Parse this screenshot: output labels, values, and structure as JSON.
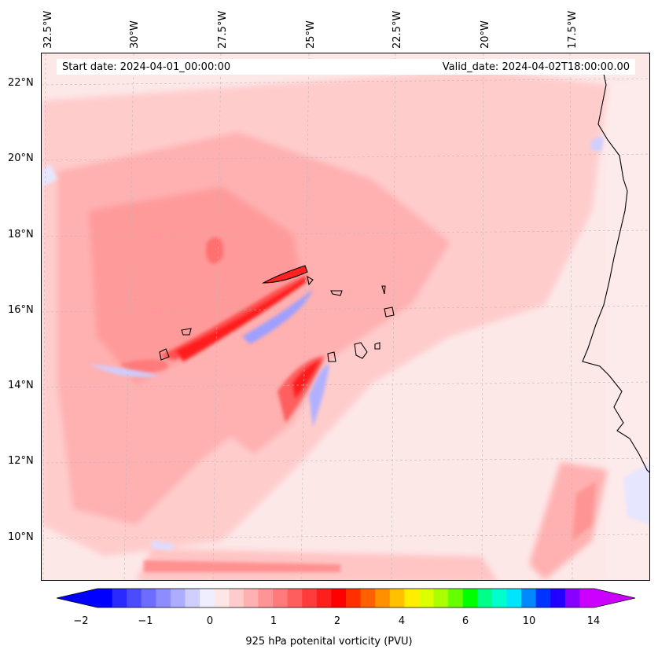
{
  "header": {
    "start_date": "Start date: 2024-04-01_00:00:00",
    "valid_date": "Valid_date: 2024-04-02T18:00:00.00"
  },
  "longitude_labels": [
    "32.5°W",
    "30°W",
    "27.5°W",
    "25°W",
    "22.5°W",
    "20°W",
    "17.5°W"
  ],
  "latitude_labels": [
    "22°N",
    "20°N",
    "18°N",
    "16°N",
    "14°N",
    "12°N",
    "10°N"
  ],
  "colorbar": {
    "ticks": [
      "−2",
      "−1",
      "0",
      "1",
      "2",
      "4",
      "6",
      "10",
      "14"
    ],
    "label": "925 hPa potenital vorticity (PVU)",
    "colors": [
      "#0000ff",
      "#2a2aff",
      "#4b4bff",
      "#6c6cff",
      "#8d8dff",
      "#adadff",
      "#ceceff",
      "#eeeeff",
      "#ffe6e6",
      "#ffcccc",
      "#ffb0b0",
      "#ff9494",
      "#ff7a7a",
      "#ff5e5e",
      "#ff3b3b",
      "#ff1e1e",
      "#ff0000",
      "#ff3000",
      "#ff6000",
      "#ff9000",
      "#ffc000",
      "#ffee00",
      "#ddff00",
      "#aaff00",
      "#66ff00",
      "#00ff00",
      "#00ff88",
      "#00ffcc",
      "#00e5ff",
      "#0088ff",
      "#0033ff",
      "#2200ff",
      "#8800ff",
      "#cc00ff"
    ],
    "under_color": "#0000ff",
    "over_color": "#cc00ff"
  }
}
